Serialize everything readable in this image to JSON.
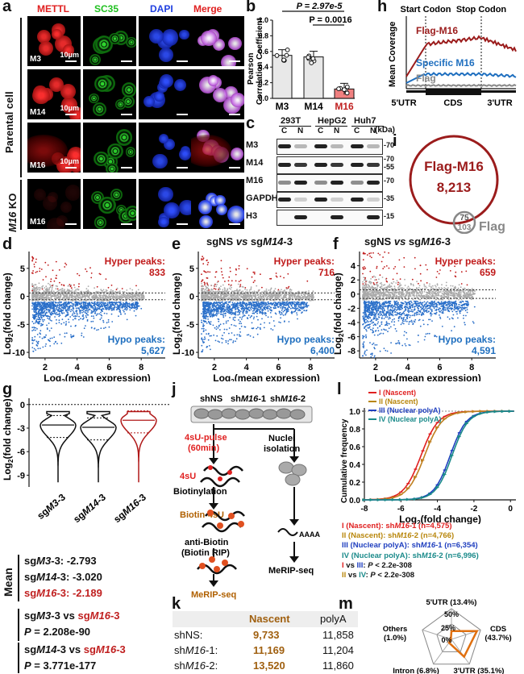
{
  "panel_labels": {
    "a": "a",
    "b": "b",
    "c": "c",
    "d": "d",
    "e": "e",
    "f": "f",
    "g": "g",
    "h": "h",
    "i": "i",
    "j": "j",
    "k": "k",
    "l": "l",
    "m": "m"
  },
  "panel_a": {
    "channels": [
      "METTL",
      "SC35",
      "DAPI",
      "Merge"
    ],
    "channel_colors": [
      "#e02020",
      "#20c020",
      "#2040e0",
      "#e02020"
    ],
    "row_labels": [
      "M3",
      "M14",
      "M16",
      "M16"
    ],
    "scale_text": "10μm",
    "group_parental": "Parental cell",
    "group_ko_gene": "M16",
    "group_ko_suffix": " KO"
  },
  "panel_b": {
    "ylabel1": "Pearson",
    "ylabel2": "Correlation Coefficient",
    "p1": "P = 2.97e-5",
    "p2": "P = 0.0016",
    "yticks": [
      "0.0",
      "0.2",
      "0.4",
      "0.6",
      "0.8",
      "1.0"
    ],
    "categories": [
      "M3",
      "M14",
      "M16"
    ]
  },
  "panel_c": {
    "cell_lines": [
      "293T",
      "HepG2",
      "Huh7"
    ],
    "fractions": [
      "C",
      "N",
      "C",
      "N",
      "C",
      "N"
    ],
    "kda": "(kDa)",
    "rows": [
      {
        "name": "M3",
        "markers": [
          "70"
        ]
      },
      {
        "name": "M14",
        "markers": [
          "70",
          "55"
        ]
      },
      {
        "name": "M16",
        "markers": [
          "70"
        ]
      },
      {
        "name": "GAPDH",
        "markers": [
          "35"
        ]
      },
      {
        "name": "H3",
        "markers": [
          "15"
        ]
      }
    ]
  },
  "panel_h": {
    "start_codon": "Start Codon",
    "stop_codon": "Stop Codon",
    "ylabel": "Mean Coverage",
    "series": [
      "Flag-M16",
      "Specific M16",
      "Flag"
    ],
    "series_colors": [
      "#9b1c1c",
      "#1f6fbf",
      "#888888"
    ],
    "regions": [
      "5'UTR",
      "CDS",
      "3'UTR"
    ]
  },
  "panel_i": {
    "label_big": "Flag-M16",
    "count_big": "8,213",
    "overlap": "75",
    "small_count": "103",
    "label_small": "Flag"
  },
  "panel_ma": {
    "ylabel_pre": "Log",
    "ylabel_sub": "2",
    "ylabel_post": "(fold change)",
    "xlabel_pre": "Log",
    "xlabel_sub": "2",
    "xlabel_post": "(mean expression)",
    "yticks": [
      "5",
      "0",
      "-5",
      "-10"
    ],
    "yticks_f": [
      "4",
      "2",
      "0",
      "-2",
      "-4",
      "-6",
      "-8"
    ],
    "xticks": [
      "2",
      "4",
      "6",
      "8"
    ],
    "hyper": "Hyper peaks:",
    "hypo": "Hypo peaks:",
    "title_e_a": "sgNS ",
    "title_e_vs": "vs",
    "title_e_b": " sg",
    "title_e_gene": "M14",
    "title_e_c": "-3",
    "title_f_gene": "M16",
    "d_hyper": "833",
    "d_hypo": "5,627",
    "e_hyper": "716",
    "e_hypo": "6,400",
    "f_hyper": "659",
    "f_hypo": "4,591"
  },
  "panel_g": {
    "yticks": [
      "0",
      "-3",
      "-6",
      "-9"
    ],
    "violins": [
      {
        "pre": "sg",
        "gene": "M3",
        "suf": "-3"
      },
      {
        "pre": "sg",
        "gene": "M14",
        "suf": "-3"
      },
      {
        "pre": "sg",
        "gene": "M16",
        "suf": "-3"
      }
    ],
    "mean_label": "Mean",
    "means": [
      {
        "pre": "sg",
        "gene": "M3",
        "suf": "-3: -2.793"
      },
      {
        "pre": "sg",
        "gene": "M14",
        "suf": "-3: -3.020"
      },
      {
        "pre": "sg",
        "gene": "M16",
        "suf": "-3: -2.189"
      }
    ],
    "cmp1_a": "sg",
    "cmp1_gene": "M3",
    "cmp1_b": "-3 vs ",
    "cmp1_c": "sg",
    "cmp1_gene2": "M16",
    "cmp1_d": "-3",
    "cmp1_p": "P",
    "cmp1_pv": " = 2.208e-90",
    "cmp2_a": "sg",
    "cmp2_gene": "M14",
    "cmp2_b": "-3 vs ",
    "cmp2_c": "sg",
    "cmp2_gene2": "M16",
    "cmp2_d": "-3",
    "cmp2_p": "P",
    "cmp2_pv": " = 3.771e-177"
  },
  "panel_j": {
    "shNS": "shNS",
    "sh1_pre": "sh",
    "sh1_gene": "M16",
    "sh1_suf": "-1",
    "sh2_pre": "sh",
    "sh2_gene": "M16",
    "sh2_suf": "-2",
    "pulse1": "4sU-pulse",
    "pulse2": "(60min)",
    "nuclei1": "Nuclei",
    "nuclei2": "isolation",
    "s4u": "4sU",
    "biotinylation": "Biotinylation",
    "biotin": "Biotin-4sU",
    "anti1": "anti-Biotin",
    "anti2": "(Biotin RIP)",
    "polyA": "AAAA",
    "merip": "MeRIP-seq",
    "merip2": "MeRIP-seq"
  },
  "panel_k": {
    "headers": [
      "Nascent",
      "polyA"
    ],
    "rows": [
      {
        "pre": "shNS:",
        "gene": "",
        "suf": "",
        "nascent": "9,733",
        "polya": "11,858"
      },
      {
        "pre": "sh",
        "gene": "M16",
        "suf": "-1:",
        "nascent": "11,169",
        "polya": "11,204"
      },
      {
        "pre": "sh",
        "gene": "M16",
        "suf": "-2:",
        "nascent": "13,520",
        "polya": "11,860"
      }
    ]
  },
  "panel_l": {
    "ylabel": "Cumulative frequency",
    "xlabel_pre": "Log",
    "xlabel_sub": "2",
    "xlabel_post": "(fold change)",
    "yticks": [
      "0.0",
      "0.2",
      "0.4",
      "0.6",
      "0.8",
      "1.0"
    ],
    "xticks": [
      "-8",
      "-6",
      "-4",
      "-2",
      "0"
    ],
    "legend": [
      {
        "roman": "I",
        "name": " (Nascent)",
        "color": "#e02020"
      },
      {
        "roman": "II",
        "name": " (Nascent)",
        "color": "#b8860b"
      },
      {
        "roman": "III",
        "name": " (Nuclear polyA)",
        "color": "#1f3fbf"
      },
      {
        "roman": "IV",
        "name": " (Nuclear polyA)",
        "color": "#1a8a8a"
      }
    ],
    "stats": [
      {
        "text": "I (Nascent): sh",
        "gene": "M16",
        "suf": "-1 (n=4,575)",
        "color": "#e02020"
      },
      {
        "text": "II (Nascent): sh",
        "gene": "M16",
        "suf": "-2 (n=4,766)",
        "color": "#b8860b"
      },
      {
        "text": "III (Nuclear polyA): sh",
        "gene": "M16",
        "suf": "-1 (n=6,354)",
        "color": "#1f3fbf"
      },
      {
        "text": "IV (Nuclear polyA): sh",
        "gene": "M16",
        "suf": "-2 (n=6,996)",
        "color": "#1a8a8a"
      }
    ],
    "p1_a": "I",
    "p1_b": " vs ",
    "p1_c": "III",
    "p1_d": ": ",
    "p1_p": "P",
    "p1_e": " < 2.2e-308",
    "p2_a": "II",
    "p2_b": " vs ",
    "p2_c": "IV",
    "p2_d": ": ",
    "p2_p": "P",
    "p2_e": " < 2.2e-308"
  },
  "panel_m": {
    "axes": [
      {
        "name": "5'UTR (13.4%)",
        "value": 13.4
      },
      {
        "name": "CDS",
        "value": 43.7
      },
      {
        "name": "3'UTR (35.1%)",
        "value": 35.1
      },
      {
        "name": "Intron (6.8%)",
        "value": 6.8
      },
      {
        "name": "Others",
        "value": 1.0
      }
    ],
    "cds_pct": "(43.7%)",
    "others_pct": "(1.0%)",
    "ring_labels": [
      "50%",
      "25%",
      "0%"
    ]
  }
}
